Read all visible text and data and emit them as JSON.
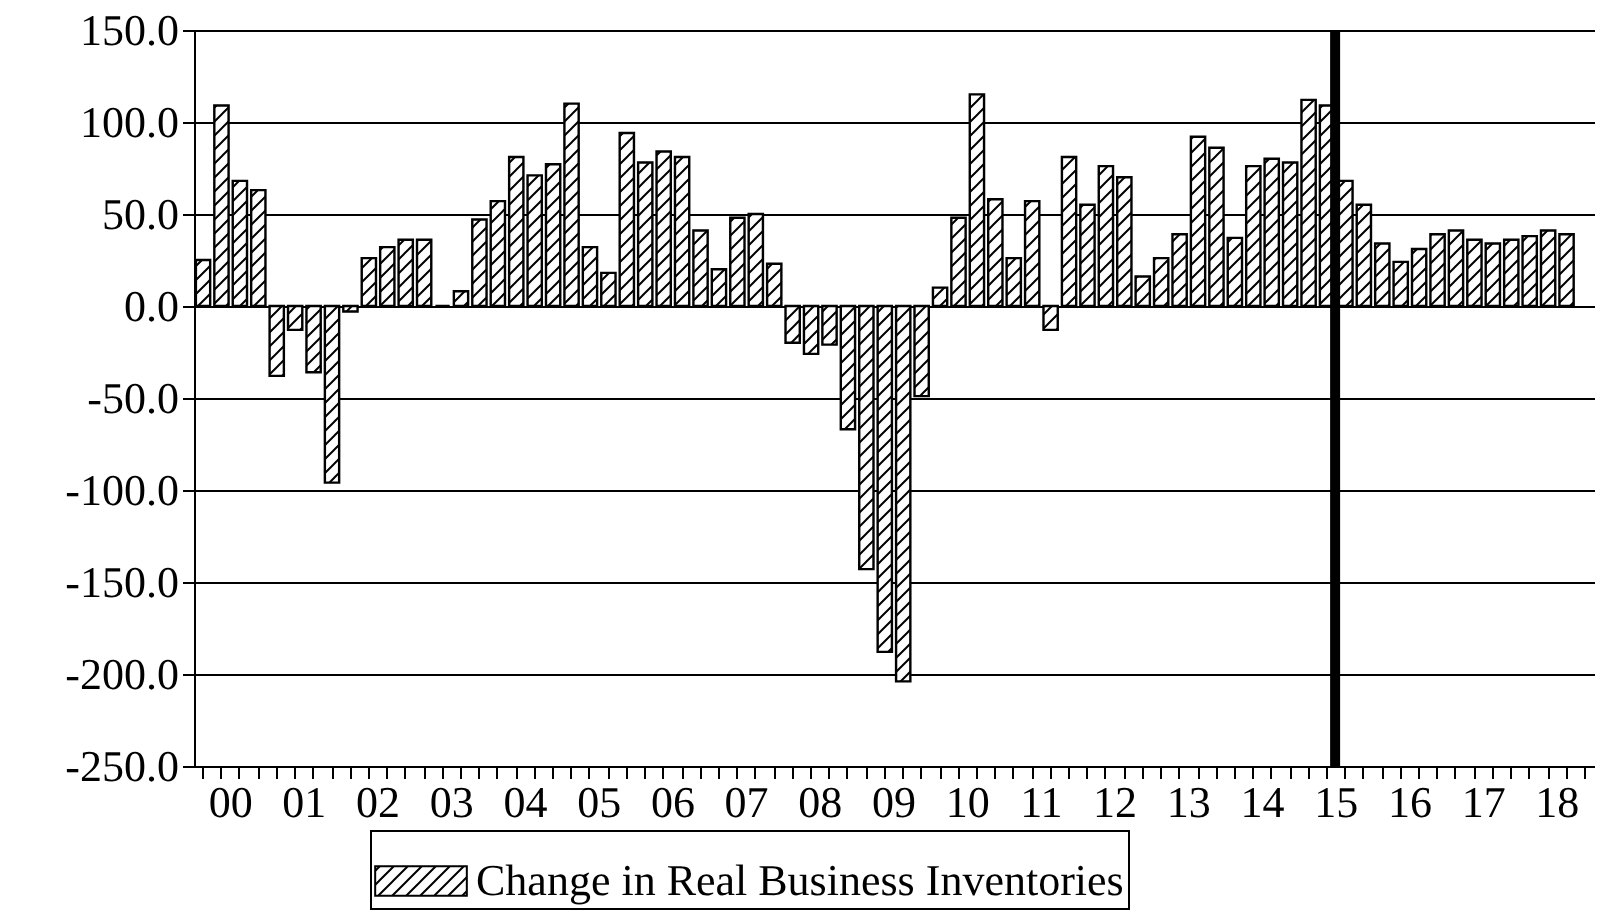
{
  "chart_data": {
    "type": "bar",
    "categories": [
      null,
      "00",
      null,
      null,
      null,
      "01",
      null,
      null,
      null,
      "02",
      null,
      null,
      null,
      "03",
      null,
      null,
      null,
      "04",
      null,
      null,
      null,
      "05",
      null,
      null,
      null,
      "06",
      null,
      null,
      null,
      "07",
      null,
      null,
      null,
      "08",
      null,
      null,
      null,
      "09",
      null,
      null,
      null,
      "10",
      null,
      null,
      null,
      "11",
      null,
      null,
      null,
      "12",
      null,
      null,
      null,
      "13",
      null,
      null,
      null,
      "14",
      null,
      null,
      null,
      "15",
      null,
      null,
      null,
      "16",
      null,
      null,
      null,
      "17",
      null,
      null,
      null,
      "18",
      null,
      null
    ],
    "series": [
      {
        "name": "Change in Real Business Inventories",
        "color": "#000000",
        "values": [
          25,
          109,
          68,
          63,
          -38,
          -13,
          -36,
          -96,
          -3,
          26,
          32,
          36,
          36,
          0,
          8,
          47,
          57,
          81,
          71,
          77,
          110,
          32,
          18,
          94,
          78,
          84,
          81,
          41,
          20,
          48,
          50,
          23,
          -20,
          -26,
          -21,
          -67,
          -143,
          -188,
          -204,
          -49,
          10,
          48,
          115,
          58,
          26,
          57,
          -13,
          81,
          55,
          76,
          70,
          16,
          26,
          39,
          92,
          86,
          37,
          76,
          80,
          78,
          112,
          109,
          68,
          55,
          34,
          24,
          31,
          39,
          41,
          36,
          34,
          36,
          38,
          41,
          39,
          null
        ]
      }
    ],
    "ylim": [
      -250,
      150
    ],
    "yticks": [
      {
        "value": -250,
        "label": "-250.0"
      },
      {
        "value": -200,
        "label": "-200.0"
      },
      {
        "value": -150,
        "label": "-150.0"
      },
      {
        "value": -100,
        "label": "-100.0"
      },
      {
        "value": -50,
        "label": "-50.0"
      },
      {
        "value": 0,
        "label": "0.0"
      },
      {
        "value": 50,
        "label": "50.0"
      },
      {
        "value": 100,
        "label": "100.0"
      },
      {
        "value": 150,
        "label": "150.0"
      }
    ],
    "grid": "y",
    "legend": "bottom",
    "ref_lines": [
      {
        "axis": "x",
        "value": "15",
        "color": "#000000"
      }
    ]
  }
}
